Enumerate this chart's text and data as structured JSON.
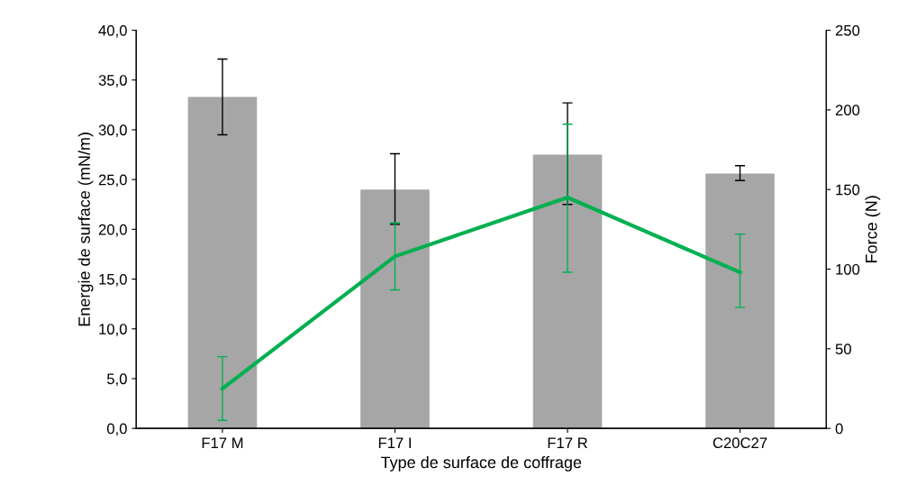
{
  "chart_data": {
    "type": "bar",
    "xlabel": "Type de surface de coffrage",
    "ylabel": "Energie de surface (mN/m)",
    "y2label": "Force (N)",
    "categories": [
      "F17 M",
      "F17 I",
      "F17 R",
      "C20C27"
    ],
    "series": [
      {
        "color": "#a6a6a6",
        "values": [
          33.3,
          24.0,
          27.5,
          25.6
        ],
        "errors": [
          [
            29.5,
            37.1
          ],
          [
            20.5,
            27.6
          ],
          [
            22.5,
            32.7
          ],
          [
            24.9,
            26.4
          ]
        ]
      },
      {
        "type": "line",
        "axis": "y2",
        "color": "#00b050",
        "values": [
          25,
          108,
          145,
          98
        ],
        "errors": [
          [
            5,
            45
          ],
          [
            87,
            129
          ],
          [
            98,
            191
          ],
          [
            76,
            122
          ]
        ]
      }
    ],
    "ylim": [
      0,
      40
    ],
    "yticks": [
      {
        "value": 0,
        "label": "0,0"
      },
      {
        "value": 5,
        "label": "5,0"
      },
      {
        "value": 10,
        "label": "10,0"
      },
      {
        "value": 15,
        "label": "15,0"
      },
      {
        "value": 20,
        "label": "20,0"
      },
      {
        "value": 25,
        "label": "25,0"
      },
      {
        "value": 30,
        "label": "30,0"
      },
      {
        "value": 35,
        "label": "35,0"
      },
      {
        "value": 40,
        "label": "40,0"
      }
    ],
    "y2lim": [
      0,
      250
    ],
    "y2ticks": [
      0,
      50,
      100,
      150,
      200,
      250
    ],
    "grid": false,
    "legend": false,
    "marker": "none",
    "line_style": "solid"
  }
}
